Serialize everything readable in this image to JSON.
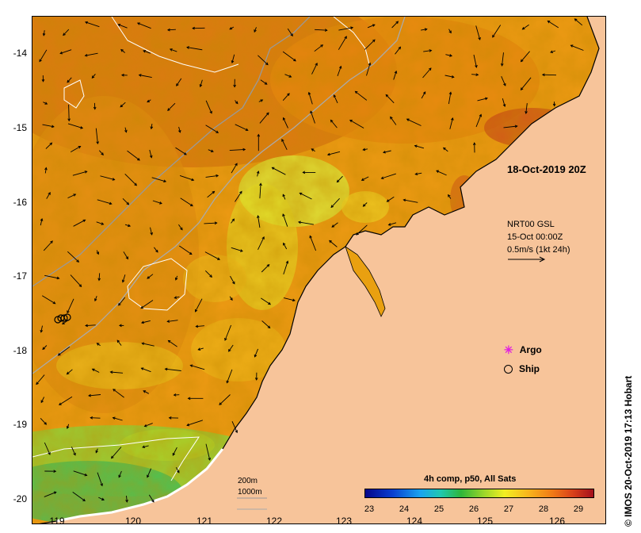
{
  "map": {
    "date_label": "18-Oct-2019 20Z",
    "current_source": [
      "NRT00 GSL",
      "15-Oct 00:00Z",
      "0.5m/s (1kt 24h)"
    ],
    "legend": [
      {
        "label": "Argo",
        "marker": "magenta-star"
      },
      {
        "label": "Ship",
        "marker": "black-circle"
      }
    ],
    "depth_contours": [
      "200m",
      "1000m"
    ],
    "colorbar": {
      "title": "4h comp, p50, All Sats",
      "ticks": [
        "23",
        "24",
        "25",
        "26",
        "27",
        "28",
        "29"
      ],
      "range": [
        23,
        29.6
      ]
    },
    "y_ticks": [
      "-14",
      "-15",
      "-16",
      "-17",
      "-18",
      "-19",
      "-20"
    ],
    "x_ticks": [
      "119",
      "120",
      "121",
      "122",
      "123",
      "124",
      "125",
      "126"
    ],
    "credit": "© IMOS 20-Oct-2019 17:13 Hobart",
    "colors": {
      "land": "#f7c49a",
      "warm": "#e08a10",
      "cool": "#9bd62a",
      "arrow": "#000000"
    }
  }
}
